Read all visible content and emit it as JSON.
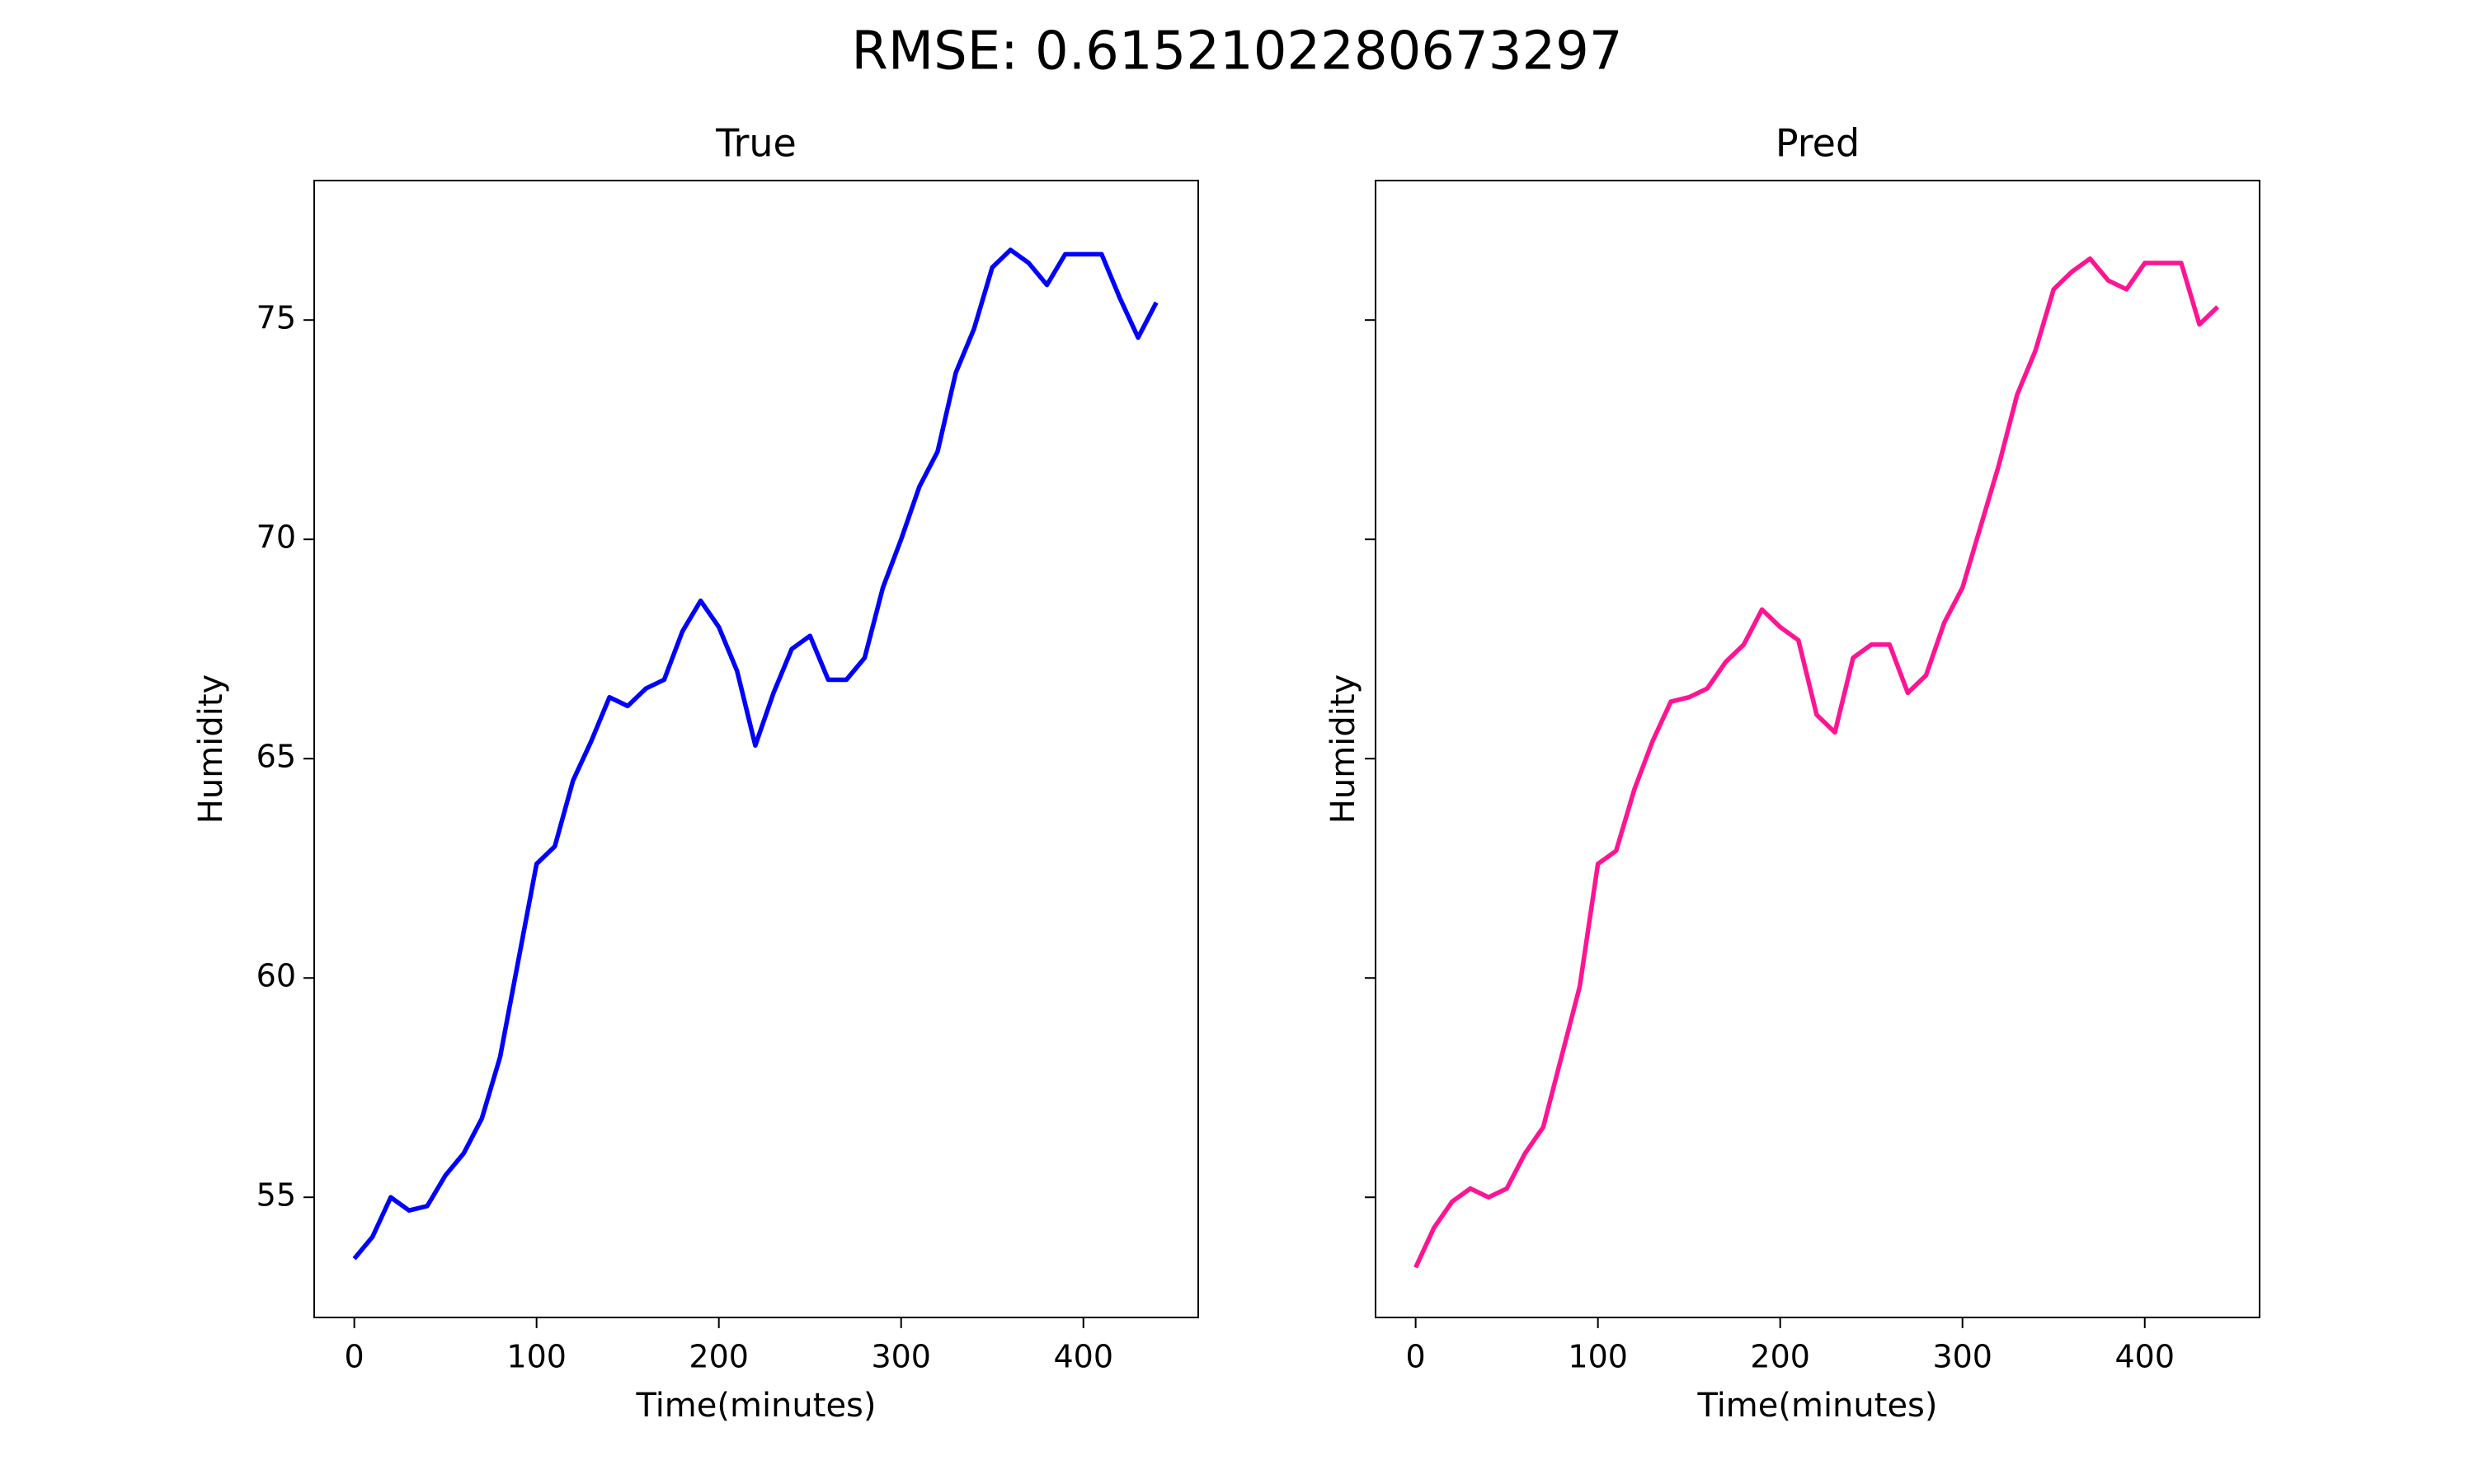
{
  "title": "RMSE: 0.6152102280673297",
  "chart_data": [
    {
      "type": "line",
      "title": "True",
      "xlabel": "Time(minutes)",
      "ylabel": "Humidity",
      "color": "#0000ff",
      "x": [
        0,
        10,
        20,
        30,
        40,
        50,
        60,
        70,
        80,
        90,
        100,
        110,
        120,
        130,
        140,
        150,
        160,
        170,
        180,
        190,
        200,
        210,
        220,
        230,
        240,
        250,
        260,
        270,
        280,
        290,
        300,
        310,
        320,
        330,
        340,
        350,
        360,
        370,
        380,
        390,
        400,
        410,
        420,
        430,
        440
      ],
      "values": [
        53.6,
        54.1,
        55.0,
        54.7,
        54.8,
        55.5,
        56.0,
        56.8,
        58.2,
        60.4,
        62.6,
        63.0,
        64.5,
        65.4,
        66.4,
        66.2,
        66.6,
        66.8,
        67.9,
        68.6,
        68.0,
        67.0,
        65.3,
        66.5,
        67.5,
        67.8,
        66.8,
        66.8,
        67.3,
        68.9,
        70.0,
        71.2,
        72.0,
        73.8,
        74.8,
        76.2,
        76.6,
        76.3,
        75.8,
        76.5,
        76.5,
        76.5,
        75.5,
        74.6,
        75.4
      ],
      "xlim": [
        -22,
        463
      ],
      "ylim": [
        52.26,
        78.18
      ],
      "xticks": [
        0,
        100,
        200,
        300,
        400
      ],
      "yticks": [
        55,
        60,
        65,
        70,
        75
      ]
    },
    {
      "type": "line",
      "title": "Pred",
      "xlabel": "Time(minutes)",
      "ylabel": "Humidity",
      "color": "#ff1493",
      "sharey": true,
      "x": [
        0,
        10,
        20,
        30,
        40,
        50,
        60,
        70,
        80,
        90,
        100,
        110,
        120,
        130,
        140,
        150,
        160,
        170,
        180,
        190,
        200,
        210,
        220,
        230,
        240,
        250,
        260,
        270,
        280,
        290,
        300,
        310,
        320,
        330,
        340,
        350,
        360,
        370,
        380,
        390,
        400,
        410,
        420,
        430,
        440
      ],
      "values": [
        53.4,
        54.3,
        54.9,
        55.2,
        55.0,
        55.2,
        56.0,
        56.6,
        58.2,
        59.8,
        62.6,
        62.9,
        64.3,
        65.4,
        66.3,
        66.4,
        66.6,
        67.2,
        67.6,
        68.4,
        68.0,
        67.7,
        66.0,
        65.6,
        67.3,
        67.6,
        67.6,
        66.5,
        66.9,
        68.1,
        68.9,
        70.3,
        71.7,
        73.3,
        74.3,
        75.7,
        76.1,
        76.4,
        75.9,
        75.7,
        76.3,
        76.3,
        76.3,
        74.9,
        75.3
      ],
      "xlim": [
        -22,
        463
      ],
      "ylim": [
        52.26,
        78.18
      ],
      "xticks": [
        0,
        100,
        200,
        300,
        400
      ],
      "yticks": [
        55,
        60,
        65,
        70,
        75
      ]
    }
  ]
}
